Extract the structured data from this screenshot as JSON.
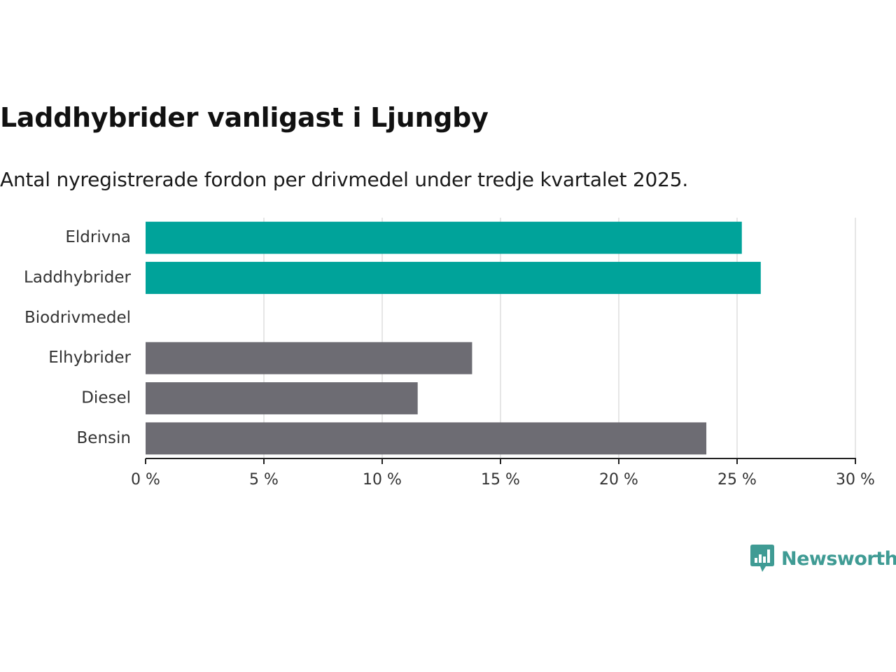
{
  "chart_data": {
    "type": "bar",
    "orientation": "horizontal",
    "title": "Laddhybrider vanligast i Ljungby",
    "subtitle": "Antal nyregistrerade fordon per drivmedel under tredje kvartalet 2025.",
    "categories": [
      "Eldrivna",
      "Laddhybrider",
      "Biodrivmedel",
      "Elhybrider",
      "Diesel",
      "Bensin"
    ],
    "values": [
      25.2,
      26.0,
      0,
      13.8,
      11.5,
      23.7
    ],
    "bar_colors": [
      "#00a39a",
      "#00a39a",
      "#6d6c73",
      "#6d6c73",
      "#6d6c73",
      "#6d6c73"
    ],
    "xlim": [
      0,
      30
    ],
    "xticks": [
      0,
      5,
      10,
      15,
      20,
      25,
      30
    ],
    "xtick_labels": [
      "0 %",
      "5 %",
      "10 %",
      "15 %",
      "20 %",
      "25 %",
      "30 %"
    ],
    "xlabel": "",
    "ylabel": "",
    "grid": true,
    "grid_color": "#dddddd"
  },
  "brand": {
    "name": "Newsworthy",
    "icon": "newsworthy-logo-icon",
    "color": "#3f9b94"
  }
}
